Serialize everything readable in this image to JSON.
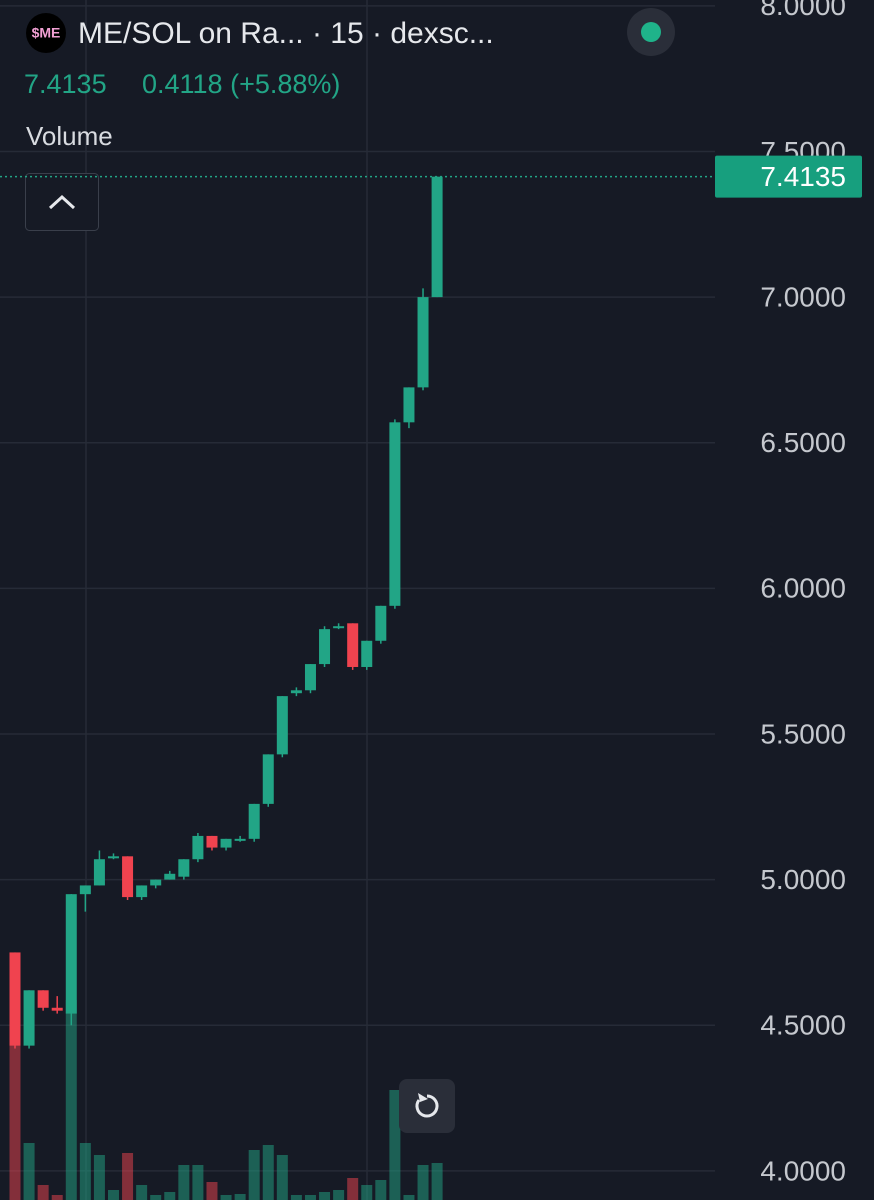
{
  "chart_data": {
    "type": "candlestick",
    "logo": "$ME",
    "title": "ME/SOL on Ra... · 15 · dexsc...",
    "last_price": 7.4135,
    "change_label": "0.4118 (+5.88%)",
    "volume_label": "Volume",
    "up_color": "#22a586",
    "down_color": "#f0434f",
    "ylim": [
      3.9,
      8.02
    ],
    "yticks": [
      {
        "value": 4,
        "label": "4.0000"
      },
      {
        "value": 4.5,
        "label": "4.5000"
      },
      {
        "value": 5,
        "label": "5.0000"
      },
      {
        "value": 5.5,
        "label": "5.5000"
      },
      {
        "value": 6,
        "label": "6.0000"
      },
      {
        "value": 6.5,
        "label": "6.5000"
      },
      {
        "value": 7,
        "label": "7.0000"
      },
      {
        "value": 7.5,
        "label": "7.5000"
      },
      {
        "value": 8,
        "label": "8.0000"
      }
    ],
    "open": [
      4.75,
      4.43,
      4.62,
      4.56,
      4.54,
      4.95,
      4.98,
      5.08,
      5.08,
      4.94,
      4.98,
      5.0,
      5.01,
      5.07,
      5.15,
      5.11,
      5.14,
      5.14,
      5.26,
      5.43,
      5.64,
      5.65,
      5.74,
      5.87,
      5.88,
      5.73,
      5.82,
      5.94,
      6.57,
      6.69,
      7.0
    ],
    "high": [
      4.75,
      4.62,
      4.62,
      4.6,
      4.95,
      4.98,
      5.1,
      5.09,
      5.08,
      4.98,
      5.0,
      5.03,
      5.07,
      5.16,
      5.15,
      5.14,
      5.15,
      5.26,
      5.43,
      5.63,
      5.66,
      5.74,
      5.87,
      5.88,
      5.88,
      5.82,
      5.94,
      6.58,
      6.69,
      7.03,
      7.4135
    ],
    "low": [
      4.42,
      4.42,
      4.55,
      4.54,
      4.5,
      4.89,
      4.98,
      5.07,
      4.93,
      4.93,
      4.97,
      5.0,
      5.0,
      5.06,
      5.1,
      5.1,
      5.13,
      5.13,
      5.25,
      5.42,
      5.63,
      5.64,
      5.73,
      5.86,
      5.72,
      5.72,
      5.81,
      5.93,
      6.55,
      6.68,
      7.0
    ],
    "close": [
      4.43,
      4.62,
      4.56,
      4.55,
      4.95,
      4.98,
      5.07,
      5.08,
      4.94,
      4.98,
      5.0,
      5.02,
      5.07,
      5.15,
      5.11,
      5.14,
      5.14,
      5.26,
      5.43,
      5.63,
      5.65,
      5.74,
      5.86,
      5.87,
      5.73,
      5.82,
      5.94,
      6.57,
      6.69,
      7.0,
      7.4135
    ],
    "volume": [
      155,
      57,
      15,
      5,
      200,
      57,
      45,
      10,
      47,
      15,
      5,
      8,
      35,
      35,
      18,
      5,
      6,
      50,
      55,
      45,
      5,
      5,
      8,
      10,
      22,
      15,
      20,
      110,
      5,
      35,
      37
    ]
  }
}
